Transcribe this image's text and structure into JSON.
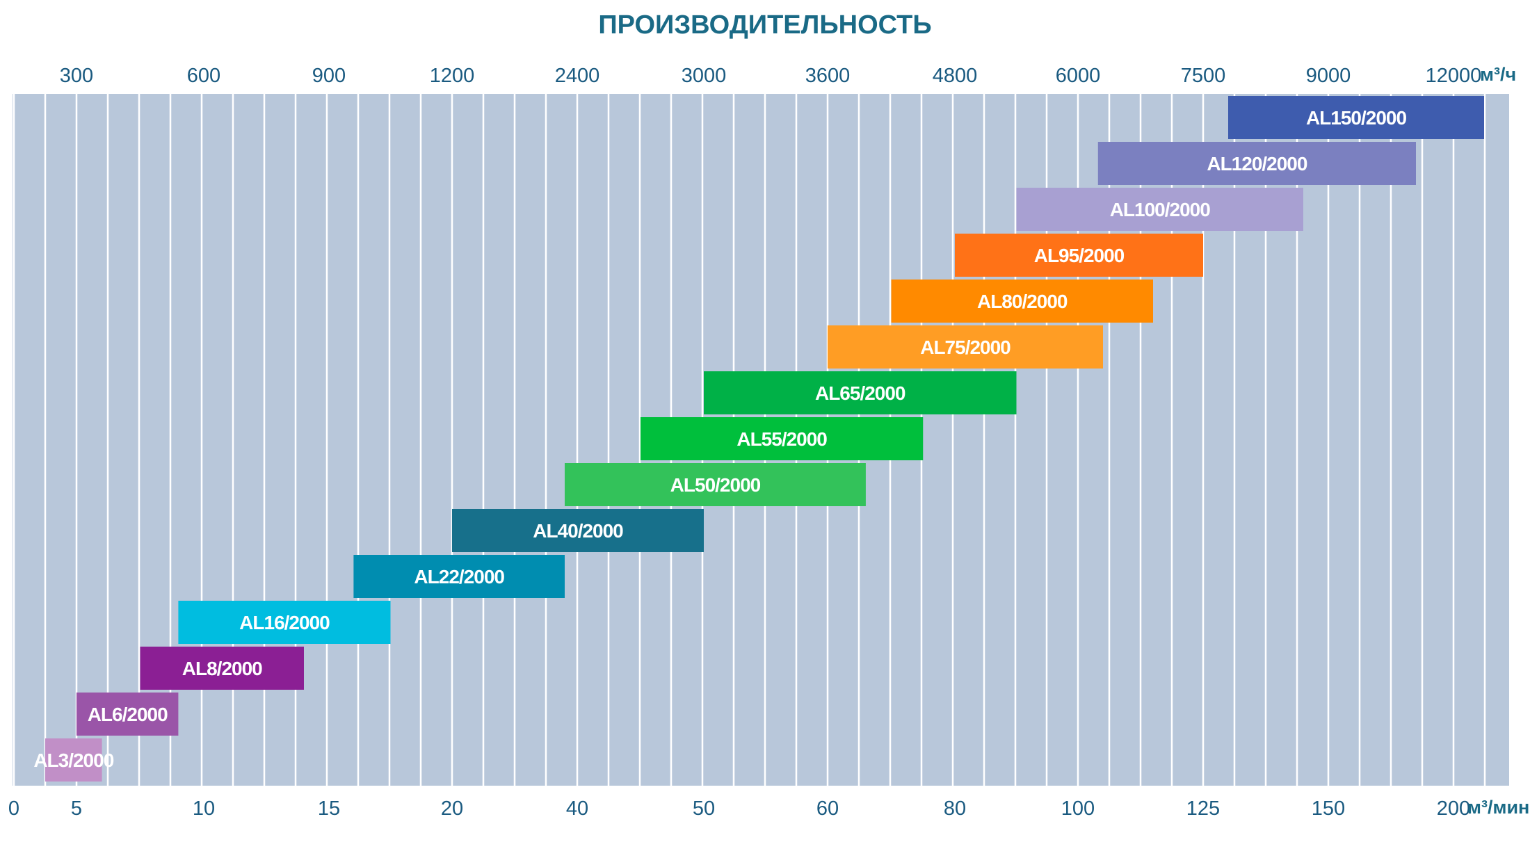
{
  "chart_data": {
    "type": "bar",
    "orientation": "horizontal-range",
    "title": "ПРОИЗВОДИТЕЛЬНОСТЬ",
    "top_axis": {
      "unit": "м³/ч",
      "ticks": [
        "300",
        "600",
        "900",
        "1200",
        "2400",
        "3000",
        "3600",
        "4800",
        "6000",
        "7500",
        "9000",
        "12000"
      ]
    },
    "bottom_axis": {
      "unit": "м³/мин",
      "ticks": [
        "0",
        "5",
        "10",
        "15",
        "20",
        "40",
        "50",
        "60",
        "80",
        "100",
        "125",
        "150",
        "200"
      ]
    },
    "grid": true,
    "series": [
      {
        "name": "AL3/2000",
        "start": 2.5,
        "end": 6,
        "color": "#c18fc7"
      },
      {
        "name": "AL6/2000",
        "start": 5,
        "end": 9,
        "color": "#9a55a8"
      },
      {
        "name": "AL8/2000",
        "start": 7.5,
        "end": 14,
        "color": "#8b1f94"
      },
      {
        "name": "AL16/2000",
        "start": 9,
        "end": 17.5,
        "color": "#00bde0"
      },
      {
        "name": "AL22/2000",
        "start": 16,
        "end": 38,
        "color": "#008db0"
      },
      {
        "name": "AL40/2000",
        "start": 20,
        "end": 50,
        "color": "#17708b"
      },
      {
        "name": "AL50/2000",
        "start": 38,
        "end": 66,
        "color": "#33c25a"
      },
      {
        "name": "AL55/2000",
        "start": 45,
        "end": 75,
        "color": "#00bf3c"
      },
      {
        "name": "AL65/2000",
        "start": 50,
        "end": 90,
        "color": "#00b147"
      },
      {
        "name": "AL75/2000",
        "start": 60,
        "end": 105,
        "color": "#ff9d24"
      },
      {
        "name": "AL80/2000",
        "start": 70,
        "end": 115,
        "color": "#ff8a00"
      },
      {
        "name": "AL95/2000",
        "start": 80,
        "end": 125,
        "color": "#ff7217"
      },
      {
        "name": "AL100/2000",
        "start": 90,
        "end": 145,
        "color": "#a8a0d2"
      },
      {
        "name": "AL120/2000",
        "start": 104,
        "end": 185,
        "color": "#7b80c0"
      },
      {
        "name": "AL150/2000",
        "start": 130,
        "end": 210,
        "color": "#3e5cae"
      }
    ]
  }
}
